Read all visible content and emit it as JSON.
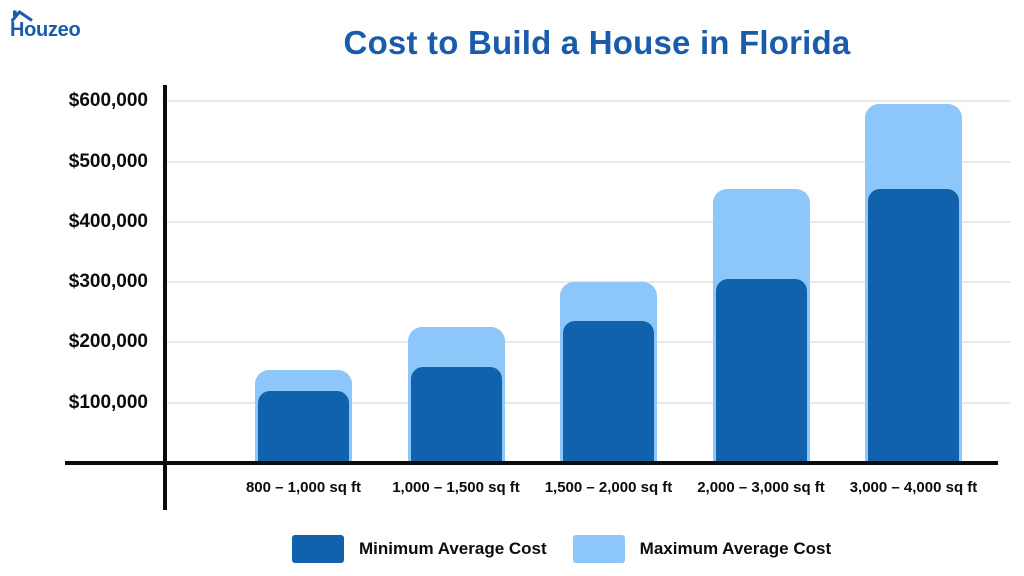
{
  "logo": {
    "text": "Houzeo",
    "color": "#1A5CAB"
  },
  "chart_data": {
    "type": "bar",
    "title": "Cost to Build a House in Florida",
    "title_color": "#1A5CAB",
    "categories": [
      "800 – 1,000 sq ft",
      "1,000 – 1,500 sq ft",
      "1,500 – 2,000 sq ft",
      "2,000 – 3,000 sq ft",
      "3,000 – 4,000 sq ft"
    ],
    "series": [
      {
        "name": "Minimum Average Cost",
        "color": "#1162AC",
        "values": [
          120000,
          160000,
          235000,
          305000,
          455000
        ]
      },
      {
        "name": "Maximum Average Cost",
        "color": "#8DC6F8",
        "values": [
          155000,
          225000,
          300000,
          455000,
          595000
        ]
      }
    ],
    "bar_mode": "overlay",
    "xlabel": "",
    "ylabel": "",
    "y_ticks": [
      {
        "value": 100000,
        "label": "$100,000"
      },
      {
        "value": 200000,
        "label": "$200,000"
      },
      {
        "value": 300000,
        "label": "$300,000"
      },
      {
        "value": 400000,
        "label": "$400,000"
      },
      {
        "value": 500000,
        "label": "$500,000"
      },
      {
        "value": 600000,
        "label": "$600,000"
      }
    ],
    "ylim": [
      0,
      620000
    ],
    "grid": true,
    "grid_color": "#E9E9E9",
    "axis_color": "#0C0C0C",
    "tick_label_color": "#0C0C0C",
    "legend_position": "bottom"
  }
}
